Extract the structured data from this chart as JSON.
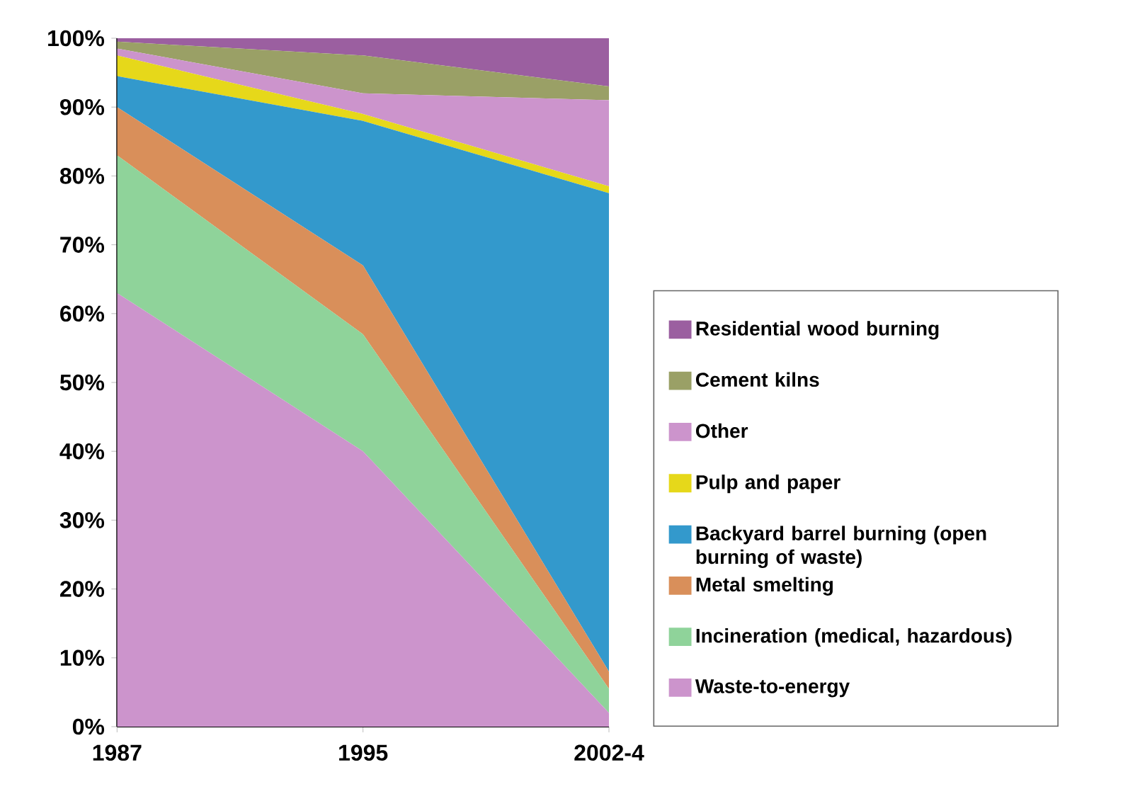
{
  "chart_data": {
    "type": "area",
    "stacked": true,
    "categories": [
      "1987",
      "1995",
      "2002-4"
    ],
    "series": [
      {
        "name": "Waste-to-energy",
        "color": "#cc94cc",
        "values": [
          63,
          40,
          2
        ]
      },
      {
        "name": "Incineration (medical, hazardous)",
        "color": "#8fd39a",
        "values": [
          20,
          17,
          3.5
        ]
      },
      {
        "name": "Metal smelting",
        "color": "#d98f5a",
        "values": [
          7,
          10,
          2.5
        ]
      },
      {
        "name": "Backyard barrel burning (open burning of waste)",
        "color": "#3399cc",
        "values": [
          4.5,
          21,
          69.5
        ]
      },
      {
        "name": "Pulp and paper",
        "color": "#e6d81a",
        "values": [
          3,
          1,
          1
        ]
      },
      {
        "name": "Other",
        "color": "#cc94cc",
        "values": [
          1,
          3,
          12.5
        ]
      },
      {
        "name": "Cement kilns",
        "color": "#9aa066",
        "values": [
          1,
          5.5,
          2
        ]
      },
      {
        "name": "Residential wood burning",
        "color": "#9b5fa0",
        "values": [
          0.5,
          2.5,
          7
        ]
      }
    ],
    "ylim": [
      0,
      100
    ],
    "yticks": [
      {
        "value": 0,
        "label": "0%"
      },
      {
        "value": 10,
        "label": "10%"
      },
      {
        "value": 20,
        "label": "20%"
      },
      {
        "value": 30,
        "label": "30%"
      },
      {
        "value": 40,
        "label": "40%"
      },
      {
        "value": 50,
        "label": "50%"
      },
      {
        "value": 60,
        "label": "60%"
      },
      {
        "value": 70,
        "label": "70%"
      },
      {
        "value": 80,
        "label": "80%"
      },
      {
        "value": 90,
        "label": "90%"
      },
      {
        "value": 100,
        "label": "100%"
      }
    ],
    "legend": "right"
  }
}
